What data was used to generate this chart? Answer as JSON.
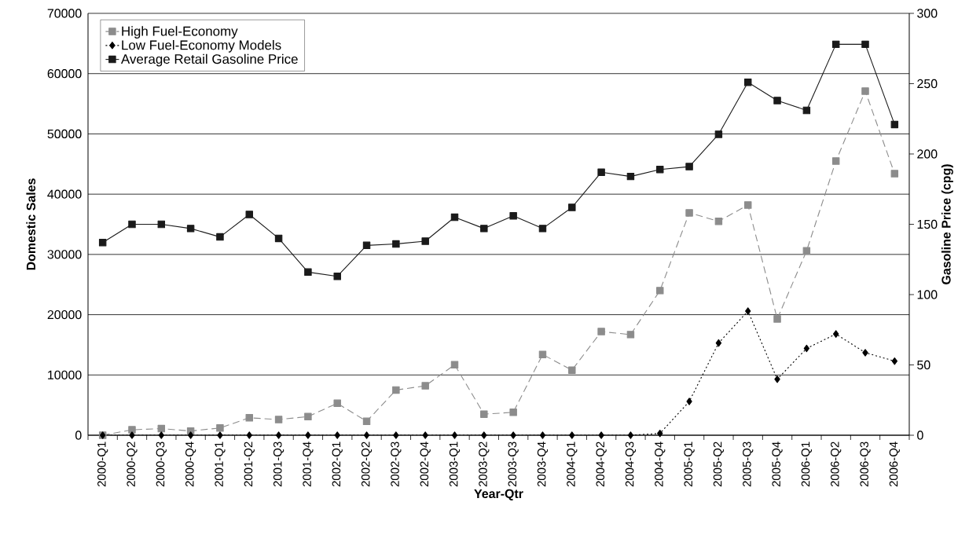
{
  "chart_data": {
    "type": "line",
    "categories": [
      "2000-Q1",
      "2000-Q2",
      "2000-Q3",
      "2000-Q4",
      "2001-Q1",
      "2001-Q2",
      "2001-Q3",
      "2001-Q4",
      "2002-Q1",
      "2002-Q2",
      "2002-Q3",
      "2002-Q4",
      "2003-Q1",
      "2003-Q2",
      "2003-Q3",
      "2003-Q4",
      "2004-Q1",
      "2004-Q2",
      "2004-Q3",
      "2004-Q4",
      "2005-Q1",
      "2005-Q2",
      "2005-Q3",
      "2005-Q4",
      "2006-Q1",
      "2006-Q2",
      "2006-Q3",
      "2006-Q4"
    ],
    "series": [
      {
        "name": "High Fuel-Economy",
        "color": "#8c8c8c",
        "marker": "square",
        "line_style": "dashed",
        "values": [
          0,
          900,
          1100,
          700,
          1200,
          2900,
          2600,
          3100,
          5300,
          2300,
          7500,
          8200,
          11700,
          3500,
          3800,
          13400,
          10800,
          17200,
          16700,
          24000,
          36900,
          35500,
          38200,
          19300,
          30600,
          45500,
          57100,
          43400
        ]
      },
      {
        "name": "Low Fuel-Economy Models",
        "color": "#000000",
        "marker": "diamond",
        "line_style": "dotted",
        "values": [
          0,
          0,
          0,
          0,
          0,
          0,
          0,
          0,
          0,
          0,
          0,
          0,
          0,
          0,
          0,
          0,
          0,
          0,
          0,
          300,
          5600,
          15300,
          20600,
          9300,
          14400,
          16800,
          13700,
          12300
        ]
      },
      {
        "name": "Average Retail Gasoline Price",
        "color": "#1a1a1a",
        "marker": "square",
        "line_style": "solid",
        "axis": "y2",
        "values": [
          137,
          150,
          150,
          147,
          141,
          157,
          140,
          116,
          113,
          135,
          136,
          138,
          155,
          147,
          156,
          147,
          162,
          187,
          184,
          189,
          191,
          214,
          251,
          238,
          231,
          278,
          278,
          221
        ]
      }
    ],
    "xlabel": "Year-Qtr",
    "ylabel": "Domestic Sales",
    "y2label": "Gasoline Price (cpg)",
    "ylim": [
      0,
      70000
    ],
    "yticks": [
      0,
      10000,
      20000,
      30000,
      40000,
      50000,
      60000,
      70000
    ],
    "y2lim": [
      0,
      300
    ],
    "y2ticks": [
      0,
      50,
      100,
      150,
      200,
      250,
      300
    ],
    "grid": "y",
    "legend": "top left"
  }
}
